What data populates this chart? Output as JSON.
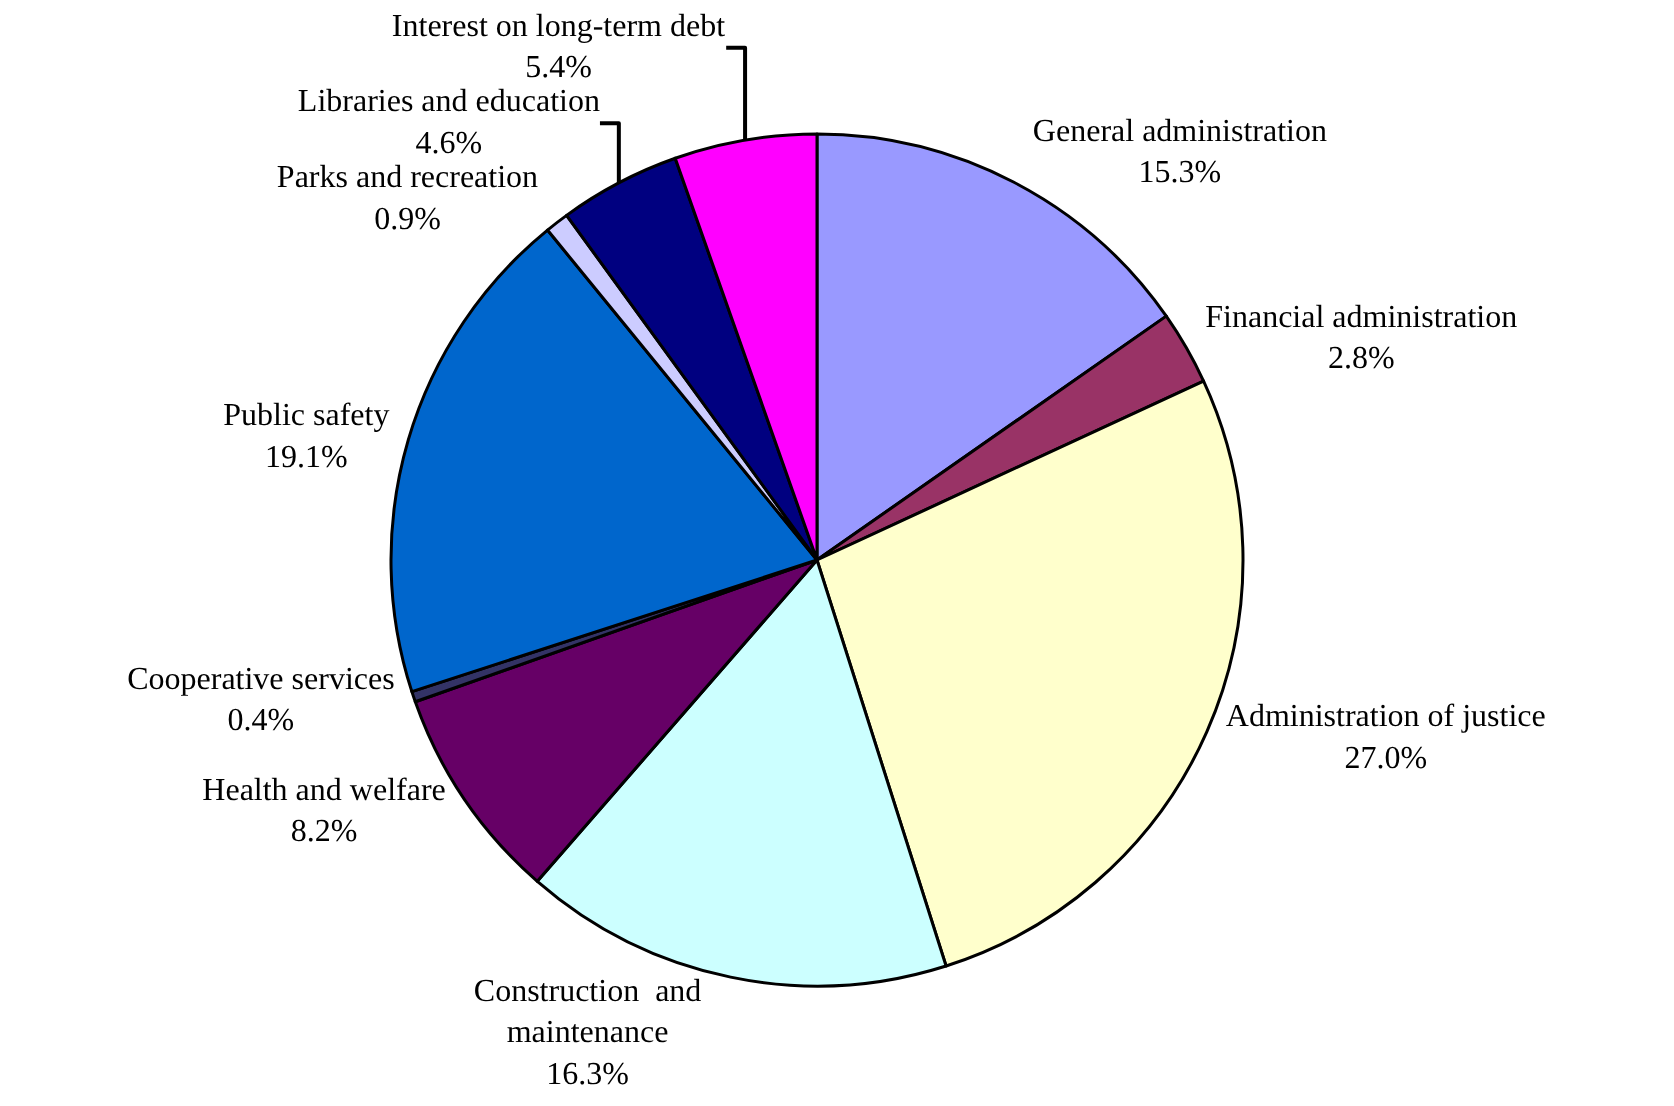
{
  "chart_data": {
    "type": "pie",
    "categories": [
      "General administration",
      "Financial administration",
      "Administration of justice",
      "Construction  and maintenance",
      "Health and welfare",
      "Cooperative services",
      "Public safety",
      "Parks and recreation",
      "Libraries and education",
      "Interest on long-term debt"
    ],
    "values": [
      15.3,
      2.8,
      27.0,
      16.3,
      8.2,
      0.4,
      19.1,
      0.9,
      4.6,
      5.4
    ],
    "colors": [
      "#9999ff",
      "#993366",
      "#ffffcc",
      "#ccffff",
      "#660066",
      "#333366",
      "#0066cc",
      "#ccccff",
      "#000080",
      "#ff00ff"
    ],
    "value_labels": [
      "15.3%",
      "2.8%",
      "27.0%",
      "16.3%",
      "8.2%",
      "0.4%",
      "19.1%",
      "0.9%",
      "4.6%",
      "5.4%"
    ],
    "legend": false
  }
}
